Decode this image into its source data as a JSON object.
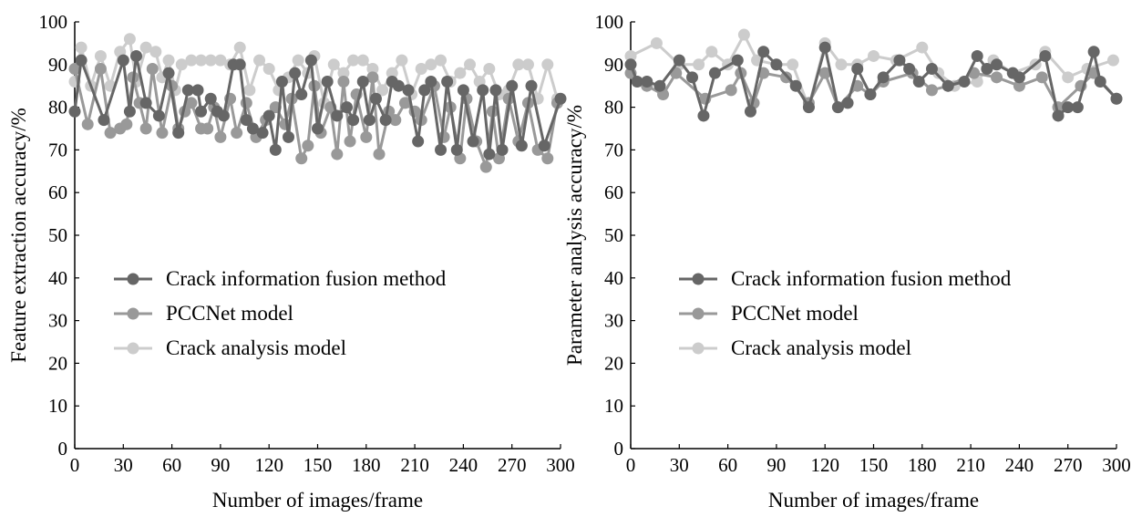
{
  "chart_data": [
    {
      "type": "line",
      "xlabel": "Number of images/frame",
      "ylabel": "Feature extraction accuracy/%",
      "xlim": [
        0,
        300
      ],
      "ylim": [
        0,
        100
      ],
      "xticks": [
        "0",
        "30",
        "60",
        "90",
        "120",
        "150",
        "180",
        "210",
        "240",
        "270",
        "300"
      ],
      "yticks": [
        "0",
        "10",
        "20",
        "30",
        "40",
        "50",
        "60",
        "70",
        "80",
        "90",
        "100"
      ],
      "legend_position": "center-left",
      "grid": false,
      "series": [
        {
          "name": "Crack information fusion method",
          "color": "#666666",
          "x": [
            0,
            4,
            18,
            30,
            34,
            38,
            44,
            52,
            58,
            64,
            70,
            76,
            78,
            84,
            88,
            92,
            98,
            102,
            106,
            110,
            116,
            120,
            124,
            128,
            132,
            136,
            140,
            146,
            150,
            156,
            162,
            168,
            172,
            178,
            182,
            186,
            192,
            196,
            200,
            206,
            212,
            216,
            220,
            226,
            230,
            236,
            240,
            246,
            252,
            256,
            260,
            264,
            270,
            276,
            282,
            290,
            300
          ],
          "y": [
            79,
            91,
            77,
            91,
            79,
            92,
            81,
            78,
            88,
            74,
            84,
            84,
            79,
            82,
            79,
            78,
            90,
            90,
            77,
            75,
            74,
            78,
            70,
            86,
            73,
            88,
            83,
            91,
            75,
            86,
            78,
            80,
            77,
            86,
            77,
            82,
            77,
            86,
            85,
            84,
            72,
            84,
            86,
            70,
            86,
            70,
            84,
            72,
            84,
            69,
            84,
            70,
            85,
            71,
            85,
            71,
            82
          ]
        },
        {
          "name": "PCCNet model",
          "color": "#999999",
          "x": [
            0,
            8,
            16,
            22,
            28,
            32,
            36,
            40,
            44,
            48,
            54,
            60,
            64,
            68,
            72,
            78,
            82,
            86,
            90,
            96,
            100,
            106,
            112,
            118,
            124,
            130,
            134,
            140,
            144,
            148,
            152,
            158,
            162,
            166,
            170,
            174,
            180,
            184,
            188,
            194,
            198,
            204,
            210,
            214,
            222,
            228,
            232,
            238,
            242,
            248,
            254,
            258,
            262,
            268,
            274,
            280,
            286,
            292,
            298
          ],
          "y": [
            89,
            76,
            89,
            74,
            75,
            76,
            87,
            81,
            75,
            89,
            74,
            85,
            75,
            79,
            81,
            75,
            75,
            80,
            73,
            82,
            74,
            81,
            73,
            77,
            80,
            76,
            82,
            68,
            71,
            85,
            74,
            80,
            69,
            86,
            72,
            83,
            73,
            87,
            69,
            79,
            77,
            81,
            79,
            77,
            85,
            73,
            80,
            68,
            82,
            72,
            66,
            79,
            68,
            82,
            72,
            81,
            70,
            68,
            81
          ]
        },
        {
          "name": "Crack analysis model",
          "color": "#cccccc",
          "x": [
            0,
            4,
            10,
            16,
            22,
            28,
            34,
            38,
            44,
            50,
            54,
            58,
            62,
            66,
            72,
            78,
            84,
            90,
            96,
            102,
            108,
            114,
            120,
            126,
            132,
            138,
            144,
            148,
            154,
            160,
            166,
            172,
            178,
            184,
            190,
            196,
            202,
            208,
            214,
            220,
            226,
            232,
            238,
            244,
            250,
            256,
            262,
            268,
            274,
            280,
            286,
            292,
            298
          ],
          "y": [
            86,
            94,
            85,
            92,
            85,
            93,
            96,
            86,
            94,
            93,
            87,
            91,
            84,
            90,
            91,
            91,
            91,
            91,
            90,
            94,
            84,
            91,
            89,
            84,
            87,
            91,
            88,
            92,
            81,
            90,
            88,
            91,
            91,
            89,
            84,
            88,
            91,
            83,
            89,
            90,
            91,
            86,
            88,
            90,
            86,
            89,
            83,
            84,
            90,
            90,
            82,
            90,
            82
          ]
        }
      ]
    },
    {
      "type": "line",
      "xlabel": "Number of images/frame",
      "ylabel": "Parameter analysis accuracy/%",
      "xlim": [
        0,
        300
      ],
      "ylim": [
        0,
        100
      ],
      "xticks": [
        "0",
        "30",
        "60",
        "90",
        "120",
        "150",
        "180",
        "210",
        "240",
        "270",
        "300"
      ],
      "yticks": [
        "0",
        "10",
        "20",
        "30",
        "40",
        "50",
        "60",
        "70",
        "80",
        "90",
        "100"
      ],
      "legend_position": "center-left",
      "grid": false,
      "series": [
        {
          "name": "Crack information fusion method",
          "color": "#666666",
          "x": [
            0,
            4,
            10,
            18,
            30,
            38,
            45,
            52,
            66,
            74,
            82,
            90,
            102,
            110,
            120,
            128,
            134,
            140,
            148,
            156,
            166,
            172,
            178,
            186,
            196,
            206,
            214,
            220,
            226,
            236,
            240,
            256,
            264,
            270,
            276,
            286,
            290,
            300
          ],
          "y": [
            90,
            86,
            86,
            85,
            91,
            87,
            78,
            88,
            91,
            79,
            93,
            90,
            85,
            80,
            94,
            80,
            81,
            89,
            83,
            87,
            91,
            89,
            86,
            89,
            85,
            86,
            92,
            89,
            90,
            88,
            87,
            92,
            78,
            80,
            80,
            93,
            86,
            82
          ]
        },
        {
          "name": "PCCNet model",
          "color": "#999999",
          "x": [
            0,
            10,
            20,
            28,
            46,
            62,
            68,
            76,
            82,
            96,
            110,
            120,
            128,
            140,
            148,
            156,
            174,
            186,
            196,
            212,
            226,
            240,
            254,
            264,
            278,
            286,
            300
          ],
          "y": [
            88,
            85,
            83,
            88,
            82,
            84,
            88,
            81,
            88,
            87,
            81,
            88,
            80,
            85,
            83,
            86,
            88,
            84,
            85,
            88,
            87,
            85,
            87,
            80,
            85,
            88,
            82
          ]
        },
        {
          "name": "Crack analysis model",
          "color": "#cccccc",
          "x": [
            0,
            16,
            30,
            42,
            50,
            60,
            70,
            78,
            90,
            100,
            110,
            120,
            130,
            140,
            150,
            164,
            180,
            190,
            200,
            214,
            224,
            236,
            250,
            256,
            270,
            282,
            298
          ],
          "y": [
            92,
            95,
            90,
            90,
            93,
            90,
            97,
            91,
            90,
            90,
            80,
            95,
            90,
            90,
            92,
            91,
            94,
            88,
            85,
            86,
            91,
            88,
            90,
            93,
            87,
            89,
            91
          ]
        }
      ]
    }
  ]
}
